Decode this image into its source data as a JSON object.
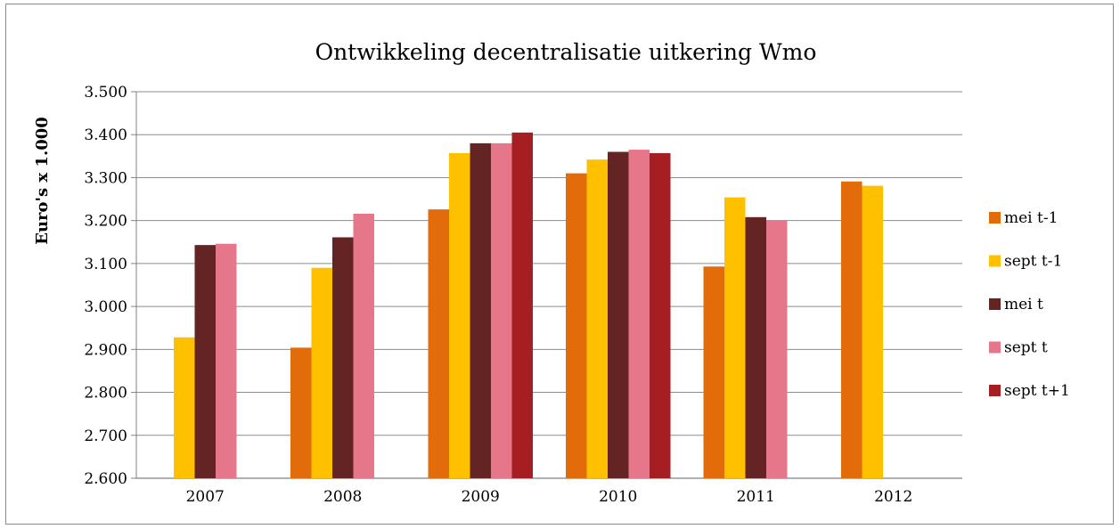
{
  "chart_data": {
    "type": "bar",
    "title": "Ontwikkeling decentralisatie uitkering Wmo",
    "xlabel": "",
    "ylabel": "Euro's x 1.000",
    "ylim": [
      2600,
      3500
    ],
    "yticks": [
      2600,
      2700,
      2800,
      2900,
      3000,
      3100,
      3200,
      3300,
      3400,
      3500
    ],
    "ytick_labels": [
      "2.600",
      "2.700",
      "2.800",
      "2.900",
      "3.000",
      "3.100",
      "3.200",
      "3.300",
      "3.400",
      "3.500"
    ],
    "grid": true,
    "legend_position": "right",
    "categories": [
      "2007",
      "2008",
      "2009",
      "2010",
      "2011",
      "2012"
    ],
    "series": [
      {
        "name": "mei t-1",
        "color": "#E26B0A",
        "values": [
          null,
          2904,
          3226,
          3310,
          3093,
          3291
        ]
      },
      {
        "name": "sept t-1",
        "color": "#FFC000",
        "values": [
          2928,
          3090,
          3357,
          3342,
          3254,
          3281
        ]
      },
      {
        "name": "mei t",
        "color": "#632423",
        "values": [
          3143,
          3161,
          3380,
          3360,
          3208,
          null
        ]
      },
      {
        "name": "sept t",
        "color": "#E6778A",
        "values": [
          3146,
          3216,
          3380,
          3365,
          3200,
          null
        ]
      },
      {
        "name": "sept t+1",
        "color": "#A51E22",
        "values": [
          null,
          null,
          3405,
          3357,
          null,
          null
        ]
      }
    ]
  }
}
